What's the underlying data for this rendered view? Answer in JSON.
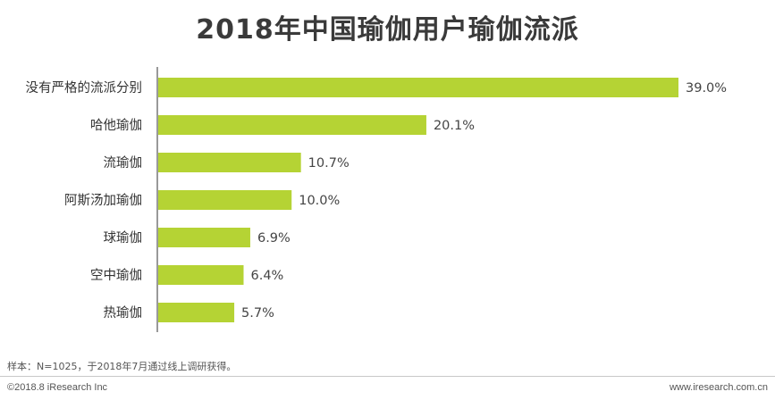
{
  "chart_data": {
    "type": "bar",
    "orientation": "horizontal",
    "title": "2018年中国瑜伽用户瑜伽流派",
    "categories": [
      "没有严格的流派分别",
      "哈他瑜伽",
      "流瑜伽",
      "阿斯汤加瑜伽",
      "球瑜伽",
      "空中瑜伽",
      "热瑜伽"
    ],
    "values": [
      39.0,
      20.1,
      10.7,
      10.0,
      6.9,
      6.4,
      5.7
    ],
    "value_labels": [
      "39.0%",
      "20.1%",
      "10.7%",
      "10.0%",
      "6.9%",
      "6.4%",
      "5.7%"
    ],
    "unit": "%",
    "xlim": [
      0,
      39.0
    ],
    "bar_color": "#b5d334",
    "axis_color": "#333333",
    "grid": false,
    "legend": "none"
  },
  "footer": {
    "note": "样本：N=1025，于2018年7月通过线上调研获得。",
    "copyright": "©2018.8 iResearch Inc",
    "site": "www.iresearch.com.cn"
  }
}
